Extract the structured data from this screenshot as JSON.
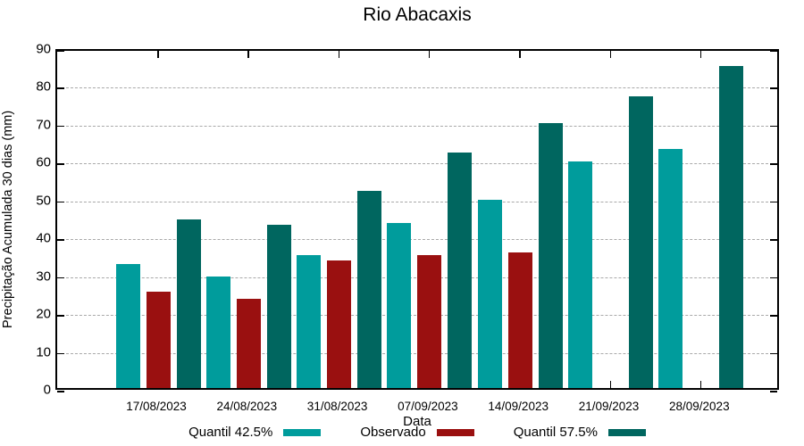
{
  "chart": {
    "title": "Rio Abacaxis",
    "xlabel": "Data",
    "ylabel": "Precipitação Acumulada 30 dias (mm)"
  },
  "chart_data": {
    "type": "bar",
    "title": "Rio Abacaxis",
    "xlabel": "Data",
    "ylabel": "Precipitação Acumulada 30 dias (mm)",
    "categories": [
      "17/08/2023",
      "24/08/2023",
      "31/08/2023",
      "07/09/2023",
      "14/09/2023",
      "21/09/2023",
      "28/09/2023"
    ],
    "series": [
      {
        "name": "Quantil 42.5%",
        "color": "#009C9C",
        "values": [
          32.8,
          29.4,
          35.0,
          43.6,
          49.7,
          59.8,
          63.2
        ]
      },
      {
        "name": "Observado",
        "color": "#9A1010",
        "values": [
          25.4,
          23.6,
          33.8,
          35.0,
          35.8,
          null,
          null
        ]
      },
      {
        "name": "Quantil 57.5%",
        "color": "#00665F",
        "values": [
          44.5,
          43.2,
          52.0,
          62.2,
          70.0,
          77.0,
          85.0
        ]
      }
    ],
    "ylim": [
      0,
      90
    ],
    "ytick_step": 10,
    "grid": "horizontal-dashed",
    "gridline_color": "#a9a9a9",
    "legend_position": "bottom",
    "axis_color": "#000000"
  }
}
